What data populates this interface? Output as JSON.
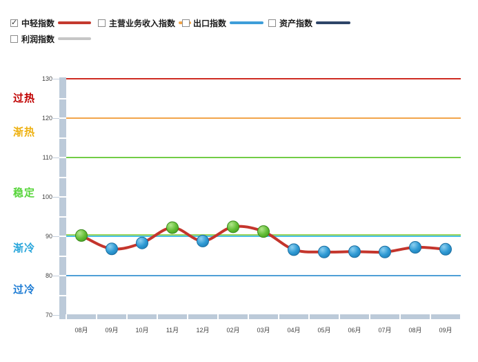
{
  "legend": {
    "items": [
      {
        "label": "中轻指数",
        "checked": true,
        "color": "#c43a2f"
      },
      {
        "label": "主营业务收入指数",
        "checked": false,
        "color": "#f2a54a"
      },
      {
        "label": "出口指数",
        "checked": false,
        "color": "#3e9ed9"
      },
      {
        "label": "资产指数",
        "checked": false,
        "color": "#2e4568"
      },
      {
        "label": "利润指数",
        "checked": false,
        "color": "#c6c6c6"
      }
    ],
    "checkmark": "✓"
  },
  "chart_data": {
    "type": "line",
    "x": [
      "08月",
      "09月",
      "10月",
      "11月",
      "12月",
      "02月",
      "03月",
      "04月",
      "05月",
      "06月",
      "07月",
      "08月",
      "09月"
    ],
    "series": [
      {
        "name": "中轻指数",
        "color": "#c4352c",
        "values": [
          90.2,
          86.8,
          88.3,
          92.2,
          88.8,
          92.4,
          91.2,
          86.6,
          86.0,
          86.1,
          86.0,
          87.2,
          86.7
        ],
        "marker_colors": [
          "green",
          "blue",
          "blue",
          "green",
          "blue",
          "green",
          "green",
          "blue",
          "blue",
          "blue",
          "blue",
          "blue",
          "blue"
        ]
      }
    ],
    "ylim": [
      70,
      130
    ],
    "yticks": [
      130,
      120,
      110,
      100,
      90,
      80,
      70
    ],
    "grid": false,
    "legend_position": "top",
    "threshold_lines": [
      {
        "value": 130,
        "color": "#ce2b21"
      },
      {
        "value": 120,
        "color": "#f2a54a"
      },
      {
        "value": 110,
        "color": "#72cc46"
      },
      {
        "value": 90.35,
        "color": "#9ad45c"
      },
      {
        "value": 90,
        "color": "#4cc2e8"
      },
      {
        "value": 80,
        "color": "#4e9fd6"
      }
    ],
    "zones": [
      {
        "label": "过热",
        "color": "#c00000",
        "at": 125.4
      },
      {
        "label": "渐热",
        "color": "#eeb111",
        "at": 116.8
      },
      {
        "label": "稳定",
        "color": "#57d53b",
        "at": 101.4
      },
      {
        "label": "渐冷",
        "color": "#29a6db",
        "at": 87.4
      },
      {
        "label": "过冷",
        "color": "#1c7bd4",
        "at": 76.8
      }
    ],
    "marker_palette": {
      "green": {
        "inner": "#b2e68c",
        "mid": "#64be37",
        "outer": "#3f9a1d",
        "stroke": "#38881a"
      },
      "blue": {
        "inner": "#8ed0f0",
        "mid": "#2f9ad4",
        "outer": "#1d7ab2",
        "stroke": "#1a6ea0"
      }
    },
    "axis_color": "#bccad9"
  }
}
